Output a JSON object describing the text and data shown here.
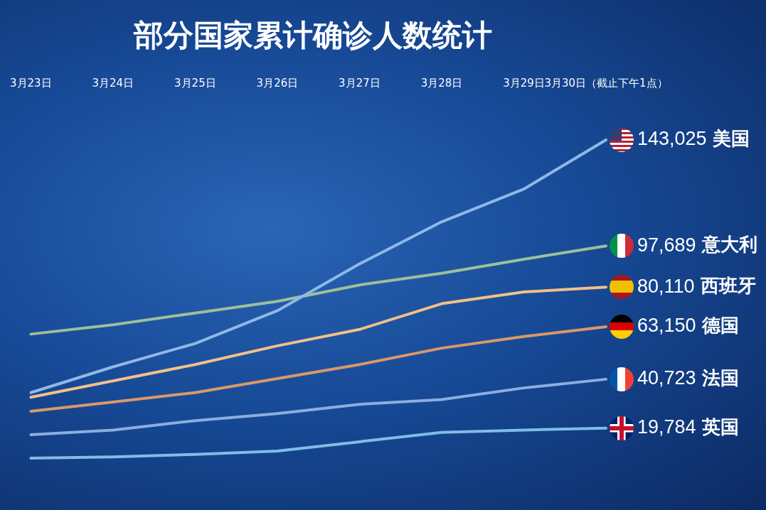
{
  "chart_data": {
    "type": "line",
    "title": "部分国家累计确诊人数统计",
    "categories": [
      "3月23日",
      "3月24日",
      "3月25日",
      "3月26日",
      "3月27日",
      "3月28日",
      "3月29日",
      "3月30日（截止下午1点）"
    ],
    "series": [
      {
        "name": "美国",
        "color": "#8fb8e8",
        "values": [
          35000,
          46000,
          56000,
          70000,
          90000,
          108000,
          122000,
          143025
        ],
        "value_labels": [
          null,
          null,
          null,
          null,
          null,
          null,
          null,
          "143,025"
        ]
      },
      {
        "name": "意大利",
        "color": "#9dbf9a",
        "values": [
          60000,
          64000,
          69000,
          74000,
          81000,
          86000,
          92000,
          97689
        ],
        "value_labels": [
          null,
          null,
          null,
          null,
          null,
          null,
          null,
          "97,689"
        ]
      },
      {
        "name": "西班牙",
        "color": "#f2c089",
        "values": [
          33000,
          40000,
          47000,
          55000,
          62000,
          73000,
          78000,
          80110
        ],
        "value_labels": [
          null,
          null,
          null,
          null,
          null,
          null,
          null,
          "80,110"
        ]
      },
      {
        "name": "德国",
        "color": "#d9986a",
        "values": [
          27000,
          31000,
          35000,
          41000,
          47000,
          54000,
          59000,
          63150
        ],
        "value_labels": [
          null,
          null,
          null,
          null,
          null,
          null,
          null,
          "63,150"
        ]
      },
      {
        "name": "法国",
        "color": "#8aaee0",
        "values": [
          17000,
          19000,
          23000,
          26000,
          30000,
          32000,
          37000,
          40723
        ],
        "value_labels": [
          null,
          null,
          null,
          null,
          null,
          null,
          null,
          "40,723"
        ]
      },
      {
        "name": "英国",
        "color": "#7fbde6",
        "values": [
          7000,
          7500,
          8600,
          10000,
          14000,
          18000,
          19000,
          19784
        ],
        "value_labels": [
          null,
          null,
          null,
          null,
          null,
          null,
          null,
          "19,784"
        ]
      }
    ],
    "tick_labels": "x",
    "legend": false,
    "grid": false,
    "marker": "none"
  }
}
